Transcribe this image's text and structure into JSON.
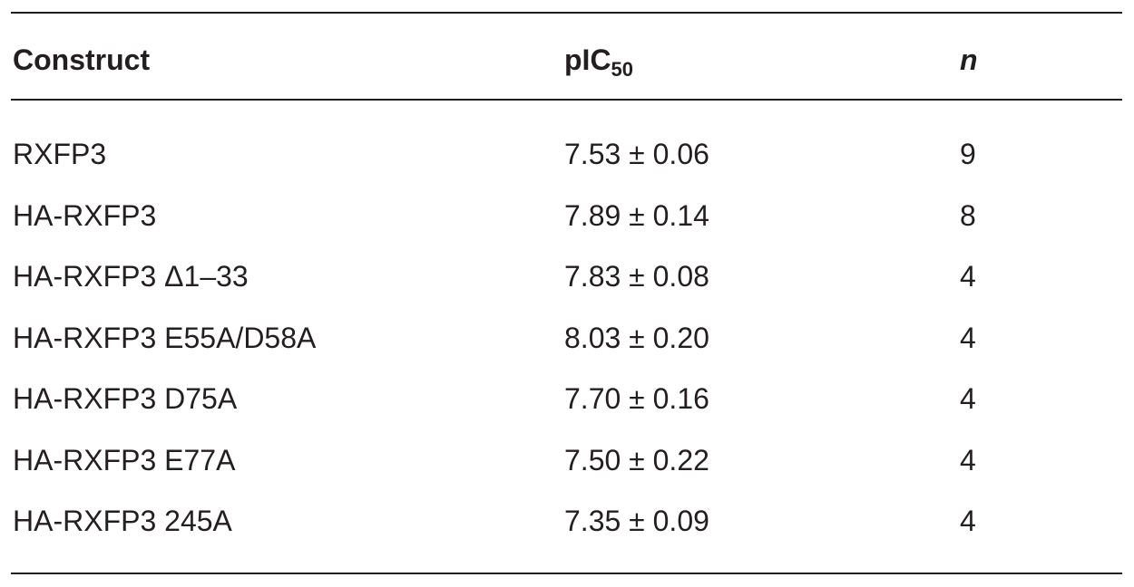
{
  "table": {
    "header": [
      {
        "text": "Construct"
      },
      {
        "text": "pIC",
        "sub": "50"
      },
      {
        "text": "n"
      }
    ],
    "rows": [
      [
        "RXFP3",
        "7.53 ± 0.06",
        "9"
      ],
      [
        "HA-RXFP3",
        "7.89 ± 0.14",
        "8"
      ],
      [
        "HA-RXFP3 Δ1–33",
        "7.83 ± 0.08",
        "4"
      ],
      [
        "HA-RXFP3 E55A/D58A",
        "8.03 ± 0.20",
        "4"
      ],
      [
        "HA-RXFP3 D75A",
        "7.70 ± 0.16",
        "4"
      ],
      [
        "HA-RXFP3 E77A",
        "7.50 ± 0.22",
        "4"
      ],
      [
        "HA-RXFP3 245A",
        "7.35 ± 0.09",
        "4"
      ]
    ]
  }
}
